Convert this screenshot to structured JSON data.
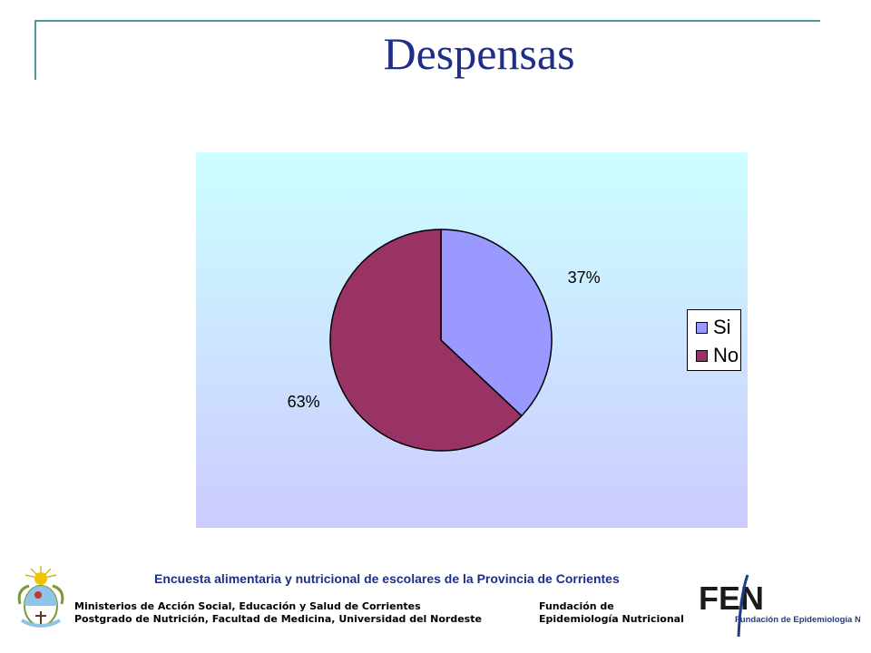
{
  "slide": {
    "title": "Despensas"
  },
  "chart_data": {
    "type": "pie",
    "title": "",
    "categories": [
      "Si",
      "No"
    ],
    "values": [
      37,
      63
    ],
    "data_labels": [
      "37%",
      "63%"
    ],
    "colors": [
      "#9999ff",
      "#993366"
    ],
    "legend": "right"
  },
  "footer": {
    "survey": "Encuesta alimentaria y  nutricional de escolares de la Provincia de Corrientes",
    "left_line1": "Ministerios de Acción Social, Educación y Salud de Corrientes",
    "left_line2": "Postgrado de Nutrición, Facultad de Medicina, Universidad del Nordeste",
    "right_line1": "Fundación de",
    "right_line2": "Epidemiología Nutricional"
  },
  "logos": {
    "fen_text": "FEN",
    "fen_subtitle": "Fundación de Epidemiología Nutricional"
  }
}
